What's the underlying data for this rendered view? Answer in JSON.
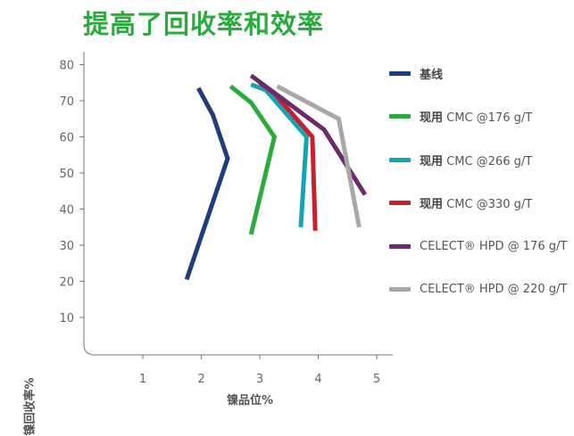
{
  "chart_data": {
    "type": "line",
    "title": "提高了回收率和效率",
    "xlabel": "镍品位%",
    "ylabel": "镍回收率%",
    "xlim": [
      0,
      5
    ],
    "ylim": [
      0,
      85
    ],
    "xticks": [
      "1",
      "2",
      "3",
      "4",
      "5"
    ],
    "yticks": [
      "10",
      "20",
      "30",
      "40",
      "50",
      "60",
      "70",
      "80"
    ],
    "legend_position": "right",
    "series": [
      {
        "name": "基线",
        "bold": "基线",
        "rest": "",
        "color": "#1f3d7a",
        "points": [
          [
            1.75,
            20.5
          ],
          [
            2.45,
            54
          ],
          [
            2.2,
            66
          ],
          [
            1.95,
            73.5
          ]
        ]
      },
      {
        "name": "现用 CMC @176 g/T",
        "bold": "现用",
        "rest": " CMC @176 g/T",
        "color": "#2bab3e",
        "points": [
          [
            2.85,
            33
          ],
          [
            3.25,
            60
          ],
          [
            2.85,
            69.5
          ],
          [
            2.5,
            74
          ]
        ]
      },
      {
        "name": "现用 CMC @266 g/T",
        "bold": "现用",
        "rest": " CMC @266 g/T",
        "color": "#14a5b5",
        "points": [
          [
            3.7,
            35
          ],
          [
            3.8,
            60
          ],
          [
            3.1,
            73
          ],
          [
            2.85,
            74.5
          ]
        ]
      },
      {
        "name": "现用 CMC @330 g/T",
        "bold": "现用",
        "rest": " CMC @330 g/T",
        "color": "#c8202f",
        "points": [
          [
            3.95,
            34
          ],
          [
            3.9,
            60
          ],
          [
            3.25,
            72
          ],
          [
            3.0,
            75
          ]
        ]
      },
      {
        "name": "CELECT® HPD @ 176 g/T",
        "bold": "",
        "rest": "CELECT® HPD @ 176 g/T",
        "color": "#6b2a6b",
        "points": [
          [
            4.8,
            44
          ],
          [
            4.1,
            62
          ],
          [
            3.35,
            71
          ],
          [
            2.85,
            77
          ]
        ]
      },
      {
        "name": "CELECT® HPD @ 220 g/T",
        "bold": "",
        "rest": "CELECT® HPD @ 220 g/T",
        "color": "#a8a8a8",
        "points": [
          [
            4.7,
            35
          ],
          [
            4.35,
            65
          ],
          [
            3.3,
            74
          ]
        ]
      }
    ]
  }
}
